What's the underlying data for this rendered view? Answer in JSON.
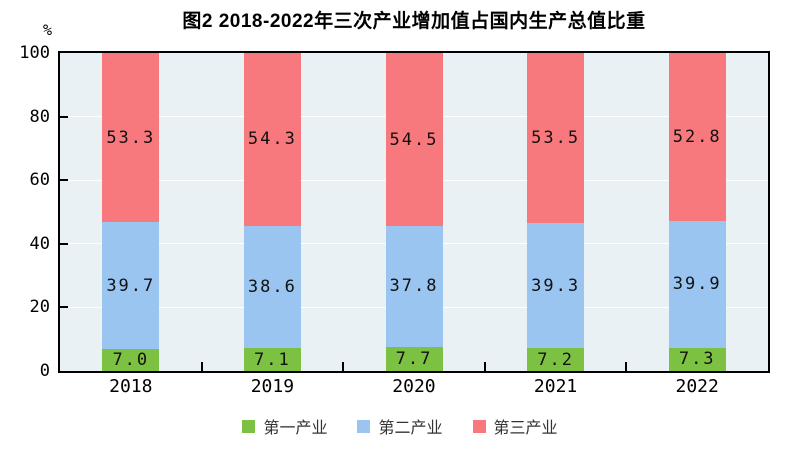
{
  "title": "图2 2018-2022年三次产业增加值占国内生产总值比重",
  "y_axis_unit": "%",
  "colors": {
    "primary_industry": "#7dc142",
    "secondary_industry": "#9ac5f0",
    "tertiary_industry": "#f8797d",
    "plot_background": "#eaf1f5",
    "gridline": "#ffffff",
    "axis": "#000000"
  },
  "chart_data": {
    "type": "bar",
    "stacked": true,
    "title": "图2 2018-2022年三次产业增加值占国内生产总值比重",
    "xlabel": "",
    "ylabel": "%",
    "ylim": [
      0,
      100
    ],
    "yticks": [
      0,
      20,
      40,
      60,
      80,
      100
    ],
    "grid": true,
    "legend_position": "bottom",
    "categories": [
      "2018",
      "2019",
      "2020",
      "2021",
      "2022"
    ],
    "series": [
      {
        "name": "第一产业",
        "color": "#7dc142",
        "values": [
          7.0,
          7.1,
          7.7,
          7.2,
          7.3
        ]
      },
      {
        "name": "第二产业",
        "color": "#9ac5f0",
        "values": [
          39.7,
          38.6,
          37.8,
          39.3,
          39.9
        ]
      },
      {
        "name": "第三产业",
        "color": "#f8797d",
        "values": [
          53.3,
          54.3,
          54.5,
          53.5,
          52.8
        ]
      }
    ]
  }
}
